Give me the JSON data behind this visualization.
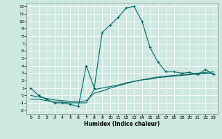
{
  "xlabel": "Humidex (Indice chaleur)",
  "background_color": "#cce8e0",
  "grid_color": "#b8d8d0",
  "line_color": "#006666",
  "xlim": [
    -0.5,
    23.5
  ],
  "ylim": [
    -2.5,
    12.5
  ],
  "xticks": [
    0,
    1,
    2,
    3,
    4,
    5,
    6,
    7,
    8,
    9,
    10,
    11,
    12,
    13,
    14,
    15,
    16,
    17,
    18,
    19,
    20,
    21,
    22,
    23
  ],
  "yticks": [
    -2,
    -1,
    0,
    1,
    2,
    3,
    4,
    5,
    6,
    7,
    8,
    9,
    10,
    11,
    12
  ],
  "curve1_x": [
    0,
    1,
    2,
    3,
    4,
    5,
    6,
    7,
    8,
    9,
    10,
    11,
    12,
    13,
    14,
    15,
    16,
    17,
    18,
    19,
    20,
    21,
    22,
    23
  ],
  "curve1_y": [
    1.0,
    0.0,
    -0.5,
    -1.0,
    -1.0,
    -1.2,
    -1.5,
    4.0,
    1.0,
    8.5,
    9.5,
    10.5,
    11.8,
    12.0,
    10.0,
    6.5,
    4.5,
    3.2,
    3.2,
    3.0,
    3.1,
    2.8,
    3.5,
    2.8
  ],
  "curve2_x": [
    0,
    1,
    2,
    3,
    4,
    5,
    6,
    7,
    8,
    9,
    10,
    11,
    12,
    13,
    14,
    15,
    16,
    17,
    18,
    19,
    20,
    21,
    22,
    23
  ],
  "curve2_y": [
    -0.5,
    -0.5,
    -0.7,
    -0.9,
    -0.9,
    -1.0,
    -1.0,
    -1.0,
    0.8,
    1.0,
    1.2,
    1.4,
    1.7,
    1.9,
    2.1,
    2.2,
    2.4,
    2.5,
    2.6,
    2.7,
    2.8,
    2.9,
    3.0,
    3.0
  ],
  "curve3_x": [
    0,
    1,
    2,
    3,
    4,
    5,
    6,
    7,
    8,
    9,
    10,
    11,
    12,
    13,
    14,
    15,
    16,
    17,
    18,
    19,
    20,
    21,
    22,
    23
  ],
  "curve3_y": [
    0.0,
    -0.2,
    -0.4,
    -0.6,
    -0.7,
    -0.8,
    -0.9,
    -0.7,
    0.3,
    0.6,
    1.0,
    1.3,
    1.6,
    1.9,
    2.1,
    2.3,
    2.5,
    2.6,
    2.7,
    2.8,
    2.9,
    3.0,
    3.1,
    3.2
  ]
}
